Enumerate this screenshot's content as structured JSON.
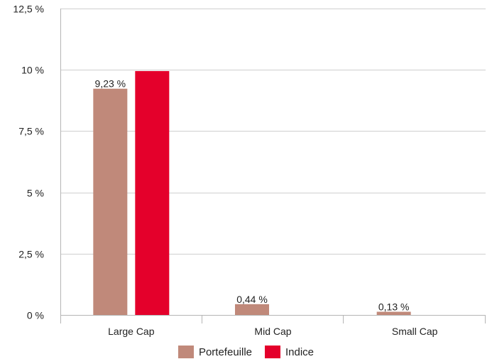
{
  "chart_data": {
    "type": "bar",
    "categories": [
      "Large Cap",
      "Mid Cap",
      "Small Cap"
    ],
    "series": [
      {
        "name": "Portefeuille",
        "color": "#c0897a",
        "values": [
          9.23,
          0.44,
          0.13
        ],
        "labels": [
          "9,23 %",
          "0,44 %",
          "0,13 %"
        ]
      },
      {
        "name": "Indice",
        "color": "#e4002b",
        "values": [
          9.95,
          0.0,
          0.0
        ],
        "labels": [
          "",
          "",
          ""
        ]
      }
    ],
    "yticks": [
      {
        "value": 0,
        "label": "0 %"
      },
      {
        "value": 2.5,
        "label": "2,5 %"
      },
      {
        "value": 5,
        "label": "5 %"
      },
      {
        "value": 7.5,
        "label": "7,5 %"
      },
      {
        "value": 10,
        "label": "10 %"
      },
      {
        "value": 12.5,
        "label": "12,5 %"
      }
    ],
    "ylim": [
      0,
      12.5
    ],
    "grid": true,
    "legend_position": "bottom"
  }
}
